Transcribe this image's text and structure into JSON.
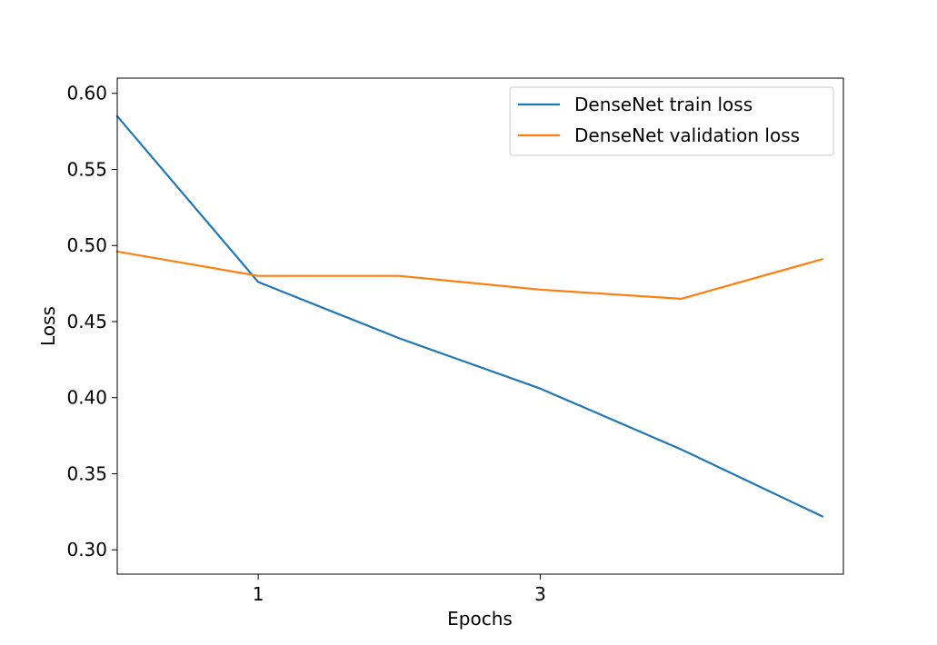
{
  "chart_data": {
    "type": "line",
    "xlabel": "Epochs",
    "ylabel": "Loss",
    "xlim": [
      0,
      5.15
    ],
    "ylim": [
      0.284,
      0.61
    ],
    "xticks": [
      1,
      3
    ],
    "xtick_labels": [
      "1",
      "3"
    ],
    "yticks": [
      0.3,
      0.35,
      0.4,
      0.45,
      0.5,
      0.55,
      0.6
    ],
    "ytick_labels": [
      "0.30",
      "0.35",
      "0.40",
      "0.45",
      "0.50",
      "0.55",
      "0.60"
    ],
    "x": [
      0,
      1,
      2,
      3,
      4,
      5
    ],
    "series": [
      {
        "name": "DenseNet train loss",
        "color": "#1f77b4",
        "values": [
          0.585,
          0.476,
          0.439,
          0.406,
          0.366,
          0.322
        ]
      },
      {
        "name": "DenseNet validation loss",
        "color": "#ff7f0e",
        "values": [
          0.496,
          0.48,
          0.48,
          0.471,
          0.465,
          0.491
        ]
      }
    ],
    "legend": "top-right",
    "grid": false
  }
}
